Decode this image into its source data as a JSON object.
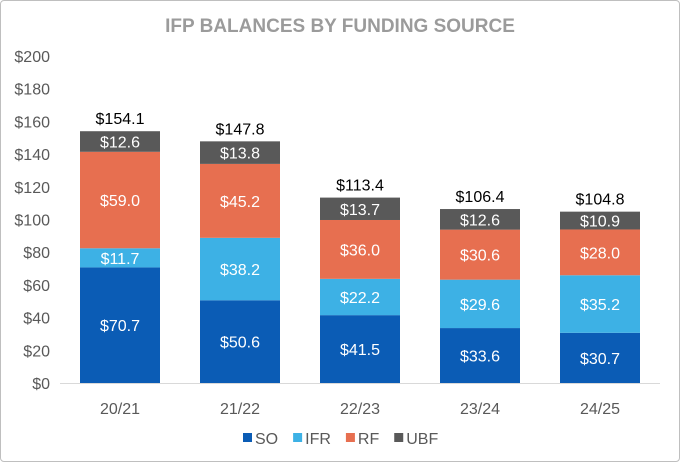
{
  "chart_data": {
    "type": "bar",
    "stacked": true,
    "title": "IFP BALANCES BY FUNDING SOURCE",
    "xlabel": "",
    "ylabel": "",
    "categories": [
      "20/21",
      "21/22",
      "22/23",
      "23/24",
      "24/25"
    ],
    "ylim": [
      0,
      200
    ],
    "yticks": [
      0,
      20,
      40,
      60,
      80,
      100,
      120,
      140,
      160,
      180,
      200
    ],
    "ytick_format": "$",
    "grid": false,
    "legend_position": "bottom",
    "series": [
      {
        "name": "SO",
        "color": "#0b5cb5",
        "values": [
          70.7,
          50.6,
          41.5,
          33.6,
          30.7
        ]
      },
      {
        "name": "IFR",
        "color": "#3db1e5",
        "values": [
          11.7,
          38.2,
          22.2,
          29.6,
          35.2
        ]
      },
      {
        "name": "RF",
        "color": "#e76f50",
        "values": [
          59.0,
          45.2,
          36.0,
          30.6,
          28.0
        ]
      },
      {
        "name": "UBF",
        "color": "#595959",
        "values": [
          12.6,
          13.8,
          13.7,
          12.6,
          10.9
        ]
      }
    ],
    "totals": [
      154.1,
      147.8,
      113.4,
      106.4,
      104.8
    ]
  }
}
